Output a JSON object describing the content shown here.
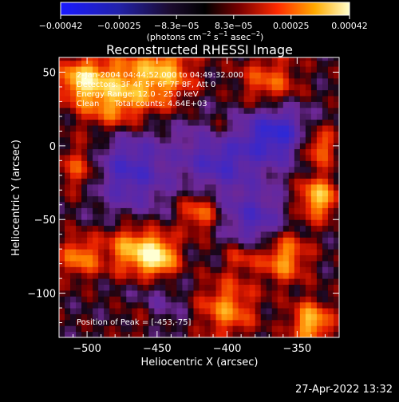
{
  "chart_data": {
    "type": "heatmap",
    "title": "Reconstructed RHESSI Image",
    "xlabel": "Heliocentric X (arcsec)",
    "ylabel": "Heliocentric Y (arcsec)",
    "xlim": [
      -520,
      -320
    ],
    "ylim": [
      -130,
      60
    ],
    "x_ticks": [
      -500,
      -450,
      -400,
      -350
    ],
    "y_ticks": [
      50,
      0,
      -50,
      -100
    ],
    "x_tick_labels": [
      "−500",
      "−450",
      "−400",
      "−350"
    ],
    "y_tick_labels": [
      "50",
      "0",
      "−50",
      "−100"
    ],
    "colorbar": {
      "range": [
        -0.00042,
        0.00042
      ],
      "tick_values": [
        -0.00042,
        -0.00025,
        -8.3e-05,
        8.3e-05,
        0.00025,
        0.00042
      ],
      "tick_labels": [
        "−0.00042",
        "−0.00025",
        "−8.3e−05",
        "8.3e−05",
        "0.00025",
        "0.00042"
      ],
      "unit_label": "(photons cm",
      "unit_sup1": "−2",
      "unit_mid": " s",
      "unit_sup2": "−1",
      "unit_mid2": " asec",
      "unit_sup3": "−2",
      "unit_end": ")"
    },
    "annotations": [
      "2-Jan-2004 04:44:52.000 to 04:49:32.000",
      "Detectors: 3F 4F 5F 6F 7F 8F, Att 0",
      "Energy Range: 12.0 - 25.0 keV",
      "Clean      Total counts: 4.64E+03"
    ],
    "peak_label": "Position of Peak = [-453,-75]",
    "peak_position": [
      -453,
      -75
    ],
    "blobs_desc": "intensity field (data units x, y, sigma, amplitude)",
    "blobs": [
      [
        -450,
        -75,
        10,
        1.0
      ],
      [
        -470,
        -70,
        12,
        0.65
      ],
      [
        -505,
        -75,
        10,
        0.6
      ],
      [
        -480,
        35,
        18,
        0.8
      ],
      [
        -445,
        50,
        15,
        0.7
      ],
      [
        -505,
        45,
        10,
        0.7
      ],
      [
        -335,
        -35,
        10,
        0.8
      ],
      [
        -335,
        0,
        9,
        0.6
      ],
      [
        -360,
        -75,
        12,
        0.7
      ],
      [
        -340,
        -120,
        10,
        0.8
      ],
      [
        -400,
        -110,
        14,
        0.6
      ],
      [
        -420,
        -45,
        10,
        0.55
      ],
      [
        -505,
        -15,
        12,
        0.5
      ],
      [
        -370,
        40,
        15,
        0.55
      ],
      [
        -405,
        10,
        10,
        0.45
      ],
      [
        -460,
        -115,
        12,
        0.5
      ],
      [
        -390,
        -75,
        8,
        0.4
      ]
    ],
    "troughs": [
      [
        -365,
        10,
        15,
        0.9
      ],
      [
        -405,
        -5,
        18,
        0.75
      ],
      [
        -470,
        -15,
        20,
        0.7
      ],
      [
        -380,
        -50,
        15,
        0.6
      ],
      [
        -455,
        -110,
        14,
        0.5
      ]
    ]
  },
  "footer": {
    "date": "27-Apr-2022 13:32"
  }
}
